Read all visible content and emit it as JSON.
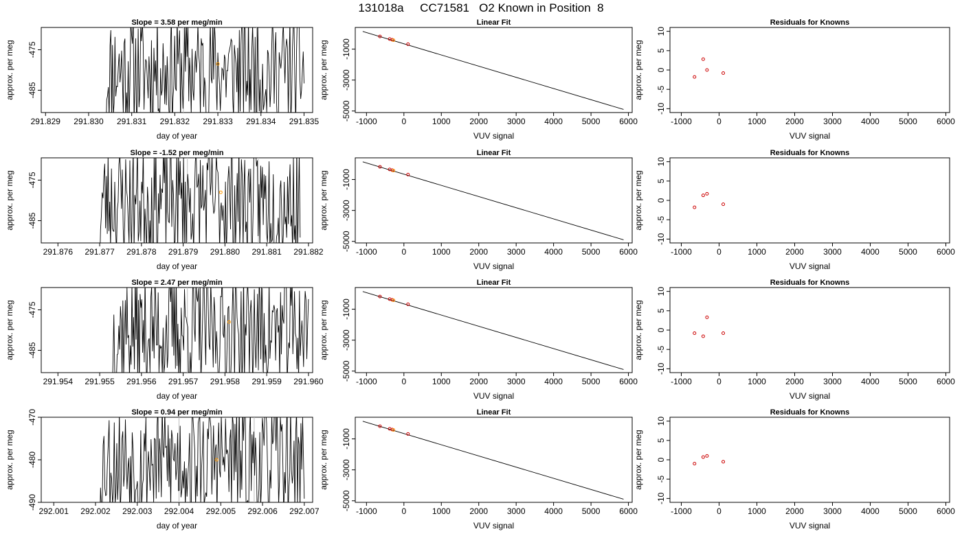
{
  "title": "131018a     CC71581   O2 Known in Position  8",
  "colors": {
    "trace": "#000000",
    "known_point": "#ff9900",
    "fit_point": "#cc0000",
    "marker_line": "#bbbbbb",
    "fit_line": "#000000"
  },
  "rows": [
    {
      "trace_panel": {
        "title": "Slope =  3.58  per meg/min",
        "xlabel": "day of year",
        "ylabel": "approx. per meg",
        "xlim": [
          291.8289,
          291.8352
        ],
        "ylim": [
          -490.5,
          -469.5
        ],
        "xticks": [
          "291.829",
          "291.830",
          "291.831",
          "291.832",
          "291.833",
          "291.834",
          "291.835"
        ],
        "yticks": [
          "-475",
          "-485"
        ],
        "trace_start": 291.8304,
        "trace_end": 291.835,
        "trace_seed": 11,
        "markers": [
          291.8322,
          291.8339
        ],
        "known_point": {
          "x": 291.833,
          "y": -478.5
        }
      },
      "fit_panel": {
        "title": "Linear Fit",
        "xlabel": "VUV signal",
        "ylabel": "approx. per meg",
        "xlim": [
          -1300,
          6100
        ],
        "ylim": [
          -5100,
          400
        ],
        "xticks": [
          "-1000",
          "0",
          "1000",
          "2000",
          "3000",
          "4000",
          "5000",
          "6000"
        ],
        "yticks": [
          "-1000",
          "-3000",
          "-5000"
        ],
        "line": {
          "x": [
            -1100,
            5870
          ],
          "y": [
            140,
            -4900
          ]
        },
        "points": [
          {
            "x": -640,
            "y": -180
          },
          {
            "x": -380,
            "y": -350
          },
          {
            "x": -310,
            "y": -400
          },
          {
            "x": 110,
            "y": -680
          }
        ],
        "known_point": {
          "x": -280,
          "y": -420
        }
      },
      "residual_panel": {
        "title": "Residuals for Knowns",
        "xlabel": "VUV signal",
        "ylabel": "approx. per meg",
        "xlim": [
          -1300,
          6100
        ],
        "ylim": [
          -11,
          11
        ],
        "xticks": [
          "-1000",
          "0",
          "1000",
          "2000",
          "3000",
          "4000",
          "5000",
          "6000"
        ],
        "yticks": [
          "10",
          "5",
          "0",
          "-5",
          "-10"
        ],
        "points": [
          {
            "x": -650,
            "y": -1.8
          },
          {
            "x": -420,
            "y": 2.8
          },
          {
            "x": -320,
            "y": 0.0
          },
          {
            "x": 110,
            "y": -0.8
          }
        ]
      }
    },
    {
      "trace_panel": {
        "title": "Slope =  -1.52  per meg/min",
        "xlabel": "day of year",
        "ylabel": "approx. per meg",
        "xlim": [
          291.8756,
          291.8821
        ],
        "ylim": [
          -490.5,
          -469.5
        ],
        "xticks": [
          "291.876",
          "291.877",
          "291.878",
          "291.879",
          "291.880",
          "291.881",
          "291.882"
        ],
        "yticks": [
          "-475",
          "-485"
        ],
        "trace_start": 291.877,
        "trace_end": 291.8818,
        "trace_seed": 23,
        "markers": [
          291.8791,
          291.8808
        ],
        "known_point": {
          "x": 291.8799,
          "y": -478.0
        }
      },
      "fit_panel": {
        "title": "Linear Fit",
        "xlabel": "VUV signal",
        "ylabel": "approx. per meg",
        "xlim": [
          -1300,
          6100
        ],
        "ylim": [
          -5100,
          400
        ],
        "xticks": [
          "-1000",
          "0",
          "1000",
          "2000",
          "3000",
          "4000",
          "5000",
          "6000"
        ],
        "yticks": [
          "-1000",
          "-3000",
          "-5000"
        ],
        "line": {
          "x": [
            -1100,
            5870
          ],
          "y": [
            140,
            -4900
          ]
        },
        "points": [
          {
            "x": -640,
            "y": -180
          },
          {
            "x": -380,
            "y": -350
          },
          {
            "x": -310,
            "y": -400
          },
          {
            "x": 110,
            "y": -680
          }
        ],
        "known_point": {
          "x": -280,
          "y": -420
        }
      },
      "residual_panel": {
        "title": "Residuals for Knowns",
        "xlabel": "VUV signal",
        "ylabel": "approx. per meg",
        "xlim": [
          -1300,
          6100
        ],
        "ylim": [
          -11,
          11
        ],
        "xticks": [
          "-1000",
          "0",
          "1000",
          "2000",
          "3000",
          "4000",
          "5000",
          "6000"
        ],
        "yticks": [
          "10",
          "5",
          "0",
          "-5",
          "-10"
        ],
        "points": [
          {
            "x": -650,
            "y": -1.8
          },
          {
            "x": -420,
            "y": 1.3
          },
          {
            "x": -320,
            "y": 1.7
          },
          {
            "x": 110,
            "y": -1.0
          }
        ]
      }
    },
    {
      "trace_panel": {
        "title": "Slope =  2.47  per meg/min",
        "xlabel": "day of year",
        "ylabel": "approx. per meg",
        "xlim": [
          291.9536,
          291.9601
        ],
        "ylim": [
          -490.5,
          -469.5
        ],
        "xticks": [
          "291.954",
          "291.955",
          "291.956",
          "291.957",
          "291.958",
          "291.959",
          "291.960"
        ],
        "yticks": [
          "-475",
          "-485"
        ],
        "trace_start": 291.9553,
        "trace_end": 291.96,
        "trace_seed": 37,
        "markers": [
          291.9571,
          291.9589
        ],
        "known_point": {
          "x": 291.9581,
          "y": -478.0
        }
      },
      "fit_panel": {
        "title": "Linear Fit",
        "xlabel": "VUV signal",
        "ylabel": "approx. per meg",
        "xlim": [
          -1300,
          6100
        ],
        "ylim": [
          -5100,
          400
        ],
        "xticks": [
          "-1000",
          "0",
          "1000",
          "2000",
          "3000",
          "4000",
          "5000",
          "6000"
        ],
        "yticks": [
          "-1000",
          "-3000",
          "-5000"
        ],
        "line": {
          "x": [
            -1100,
            5870
          ],
          "y": [
            140,
            -4900
          ]
        },
        "points": [
          {
            "x": -640,
            "y": -180
          },
          {
            "x": -380,
            "y": -350
          },
          {
            "x": -310,
            "y": -400
          },
          {
            "x": 110,
            "y": -680
          }
        ],
        "known_point": {
          "x": -280,
          "y": -420
        }
      },
      "residual_panel": {
        "title": "Residuals for Knowns",
        "xlabel": "VUV signal",
        "ylabel": "approx. per meg",
        "xlim": [
          -1300,
          6100
        ],
        "ylim": [
          -11,
          11
        ],
        "xticks": [
          "-1000",
          "0",
          "1000",
          "2000",
          "3000",
          "4000",
          "5000",
          "6000"
        ],
        "yticks": [
          "10",
          "5",
          "0",
          "-5",
          "-10"
        ],
        "points": [
          {
            "x": -650,
            "y": -0.8
          },
          {
            "x": -420,
            "y": -1.6
          },
          {
            "x": -320,
            "y": 3.3
          },
          {
            "x": 110,
            "y": -0.8
          }
        ]
      }
    },
    {
      "trace_panel": {
        "title": "Slope =  0.94  per meg/min",
        "xlabel": "day of year",
        "ylabel": "approx. per meg",
        "xlim": [
          292.0007,
          292.0072
        ],
        "ylim": [
          -490,
          -470
        ],
        "xticks": [
          "292.001",
          "292.002",
          "292.003",
          "292.004",
          "292.005",
          "292.006",
          "292.007"
        ],
        "yticks": [
          "-470",
          "-480",
          "-490"
        ],
        "trace_start": 292.0021,
        "trace_end": 292.007,
        "trace_seed": 53,
        "markers": [
          292.004,
          292.0058
        ],
        "known_point": {
          "x": 292.0049,
          "y": -480.0
        }
      },
      "fit_panel": {
        "title": "Linear Fit",
        "xlabel": "VUV signal",
        "ylabel": "approx. per meg",
        "xlim": [
          -1300,
          6100
        ],
        "ylim": [
          -5100,
          400
        ],
        "xticks": [
          "-1000",
          "0",
          "1000",
          "2000",
          "3000",
          "4000",
          "5000",
          "6000"
        ],
        "yticks": [
          "-1000",
          "-3000",
          "-5000"
        ],
        "line": {
          "x": [
            -1100,
            5870
          ],
          "y": [
            140,
            -4900
          ]
        },
        "points": [
          {
            "x": -640,
            "y": -180
          },
          {
            "x": -380,
            "y": -350
          },
          {
            "x": -310,
            "y": -400
          },
          {
            "x": 110,
            "y": -680
          }
        ],
        "known_point": {
          "x": -280,
          "y": -420
        }
      },
      "residual_panel": {
        "title": "Residuals for Knowns",
        "xlabel": "VUV signal",
        "ylabel": "approx. per meg",
        "xlim": [
          -1300,
          6100
        ],
        "ylim": [
          -11,
          11
        ],
        "xticks": [
          "-1000",
          "0",
          "1000",
          "2000",
          "3000",
          "4000",
          "5000",
          "6000"
        ],
        "yticks": [
          "10",
          "5",
          "0",
          "-5",
          "-10"
        ],
        "points": [
          {
            "x": -650,
            "y": -1.0
          },
          {
            "x": -420,
            "y": 0.7
          },
          {
            "x": -320,
            "y": 1.0
          },
          {
            "x": 110,
            "y": -0.5
          }
        ]
      }
    }
  ],
  "chart_data": {
    "type": "line",
    "title": "131018a     CC71581   O2 Known in Position  8",
    "panels": [
      {
        "row": 1,
        "kind": "line",
        "title": "Slope =  3.58  per meg/min",
        "xlabel": "day of year",
        "ylabel": "approx. per meg",
        "xlim": [
          291.8289,
          291.8352
        ],
        "ylim": [
          -490.5,
          -469.5
        ]
      },
      {
        "row": 1,
        "kind": "scatter+line",
        "title": "Linear Fit",
        "xlabel": "VUV signal",
        "ylabel": "approx. per meg",
        "xlim": [
          -1300,
          6100
        ],
        "ylim": [
          -5100,
          400
        ]
      },
      {
        "row": 1,
        "kind": "scatter",
        "title": "Residuals for Knowns",
        "xlabel": "VUV signal",
        "ylabel": "approx. per meg",
        "x": [
          -650,
          -420,
          -320,
          110
        ],
        "y": [
          -1.8,
          2.8,
          0.0,
          -0.8
        ]
      },
      {
        "row": 2,
        "kind": "line",
        "title": "Slope =  -1.52  per meg/min",
        "xlabel": "day of year",
        "ylabel": "approx. per meg",
        "xlim": [
          291.8756,
          291.8821
        ],
        "ylim": [
          -490.5,
          -469.5
        ]
      },
      {
        "row": 2,
        "kind": "scatter+line",
        "title": "Linear Fit",
        "xlabel": "VUV signal",
        "ylabel": "approx. per meg",
        "xlim": [
          -1300,
          6100
        ],
        "ylim": [
          -5100,
          400
        ]
      },
      {
        "row": 2,
        "kind": "scatter",
        "title": "Residuals for Knowns",
        "xlabel": "VUV signal",
        "ylabel": "approx. per meg",
        "x": [
          -650,
          -420,
          -320,
          110
        ],
        "y": [
          -1.8,
          1.3,
          1.7,
          -1.0
        ]
      },
      {
        "row": 3,
        "kind": "line",
        "title": "Slope =  2.47  per meg/min",
        "xlabel": "day of year",
        "ylabel": "approx. per meg",
        "xlim": [
          291.9536,
          291.9601
        ],
        "ylim": [
          -490.5,
          -469.5
        ]
      },
      {
        "row": 3,
        "kind": "scatter+line",
        "title": "Linear Fit",
        "xlabel": "VUV signal",
        "ylabel": "approx. per meg",
        "xlim": [
          -1300,
          6100
        ],
        "ylim": [
          -5100,
          400
        ]
      },
      {
        "row": 3,
        "kind": "scatter",
        "title": "Residuals for Knowns",
        "xlabel": "VUV signal",
        "ylabel": "approx. per meg",
        "x": [
          -650,
          -420,
          -320,
          110
        ],
        "y": [
          -0.8,
          -1.6,
          3.3,
          -0.8
        ]
      },
      {
        "row": 4,
        "kind": "line",
        "title": "Slope =  0.94  per meg/min",
        "xlabel": "day of year",
        "ylabel": "approx. per meg",
        "xlim": [
          292.0007,
          292.0072
        ],
        "ylim": [
          -490,
          -470
        ]
      },
      {
        "row": 4,
        "kind": "scatter+line",
        "title": "Linear Fit",
        "xlabel": "VUV signal",
        "ylabel": "approx. per meg",
        "xlim": [
          -1300,
          6100
        ],
        "ylim": [
          -5100,
          400
        ]
      },
      {
        "row": 4,
        "kind": "scatter",
        "title": "Residuals for Knowns",
        "xlabel": "VUV signal",
        "ylabel": "approx. per meg",
        "x": [
          -650,
          -420,
          -320,
          110
        ],
        "y": [
          -1.0,
          0.7,
          1.0,
          -0.5
        ]
      }
    ]
  }
}
